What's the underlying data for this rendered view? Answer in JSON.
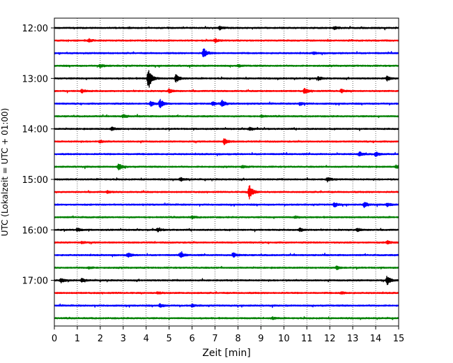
{
  "chart_data": {
    "type": "line",
    "title": "",
    "xlabel": "Zeit  [min]",
    "ylabel": "UTC (Lokalzeit = UTC + 01:00)",
    "xlim": [
      0,
      15
    ],
    "x_ticks": [
      "0",
      "1",
      "2",
      "3",
      "4",
      "5",
      "6",
      "7",
      "8",
      "9",
      "10",
      "11",
      "12",
      "13",
      "14",
      "15"
    ],
    "y_ticks": [
      "12:00",
      "13:00",
      "14:00",
      "15:00",
      "16:00",
      "17:00"
    ],
    "grid": "vertical dotted lines at every minute",
    "trace_interval_minutes": 15,
    "trace_colors": [
      "#000000",
      "#ff0000",
      "#0000ff",
      "#008000"
    ],
    "traces": [
      {
        "start": "12:00",
        "color": "#000000",
        "events": [
          [
            7.2,
            0.3
          ],
          [
            12.2,
            0.25
          ]
        ]
      },
      {
        "start": "12:15",
        "color": "#ff0000",
        "events": [
          [
            1.5,
            0.3
          ],
          [
            7.0,
            0.3
          ]
        ]
      },
      {
        "start": "12:30",
        "color": "#0000ff",
        "events": [
          [
            6.5,
            1.0
          ],
          [
            11.3,
            0.2
          ]
        ]
      },
      {
        "start": "12:45",
        "color": "#008000",
        "events": [
          [
            2.0,
            0.3
          ],
          [
            8.0,
            0.2
          ]
        ]
      },
      {
        "start": "13:00",
        "color": "#000000",
        "events": [
          [
            4.1,
            2.0
          ],
          [
            5.3,
            0.8
          ],
          [
            11.5,
            0.3
          ],
          [
            14.5,
            0.4
          ]
        ]
      },
      {
        "start": "13:15",
        "color": "#ff0000",
        "events": [
          [
            1.2,
            0.3
          ],
          [
            5.0,
            0.4
          ],
          [
            10.9,
            0.5
          ],
          [
            12.5,
            0.3
          ]
        ]
      },
      {
        "start": "13:30",
        "color": "#0000ff",
        "events": [
          [
            4.2,
            0.5
          ],
          [
            4.6,
            0.8
          ],
          [
            6.9,
            0.4
          ],
          [
            7.3,
            0.7
          ],
          [
            10.7,
            0.3
          ]
        ]
      },
      {
        "start": "13:45",
        "color": "#008000",
        "events": [
          [
            3.0,
            0.3
          ],
          [
            9.0,
            0.2
          ]
        ]
      },
      {
        "start": "14:00",
        "color": "#000000",
        "events": [
          [
            2.5,
            0.3
          ],
          [
            8.5,
            0.3
          ]
        ]
      },
      {
        "start": "14:15",
        "color": "#ff0000",
        "events": [
          [
            7.4,
            0.6
          ],
          [
            2.0,
            0.2
          ]
        ]
      },
      {
        "start": "14:30",
        "color": "#0000ff",
        "events": [
          [
            13.3,
            0.4
          ],
          [
            14.0,
            0.4
          ]
        ]
      },
      {
        "start": "14:45",
        "color": "#008000",
        "events": [
          [
            2.8,
            0.6
          ],
          [
            8.2,
            0.2
          ],
          [
            14.9,
            0.3
          ]
        ]
      },
      {
        "start": "15:00",
        "color": "#000000",
        "events": [
          [
            5.5,
            0.3
          ],
          [
            11.9,
            0.4
          ]
        ]
      },
      {
        "start": "15:15",
        "color": "#ff0000",
        "events": [
          [
            8.5,
            1.4
          ],
          [
            2.3,
            0.2
          ]
        ]
      },
      {
        "start": "15:30",
        "color": "#0000ff",
        "events": [
          [
            12.2,
            0.4
          ],
          [
            13.5,
            0.5
          ],
          [
            14.5,
            0.3
          ]
        ]
      },
      {
        "start": "15:45",
        "color": "#008000",
        "events": [
          [
            6.0,
            0.2
          ],
          [
            10.5,
            0.2
          ]
        ]
      },
      {
        "start": "16:00",
        "color": "#000000",
        "events": [
          [
            1.0,
            0.3
          ],
          [
            4.5,
            0.3
          ],
          [
            10.7,
            0.3
          ],
          [
            13.2,
            0.3
          ]
        ]
      },
      {
        "start": "16:15",
        "color": "#ff0000",
        "events": [
          [
            1.2,
            0.2
          ],
          [
            14.5,
            0.3
          ]
        ]
      },
      {
        "start": "16:30",
        "color": "#0000ff",
        "events": [
          [
            3.2,
            0.4
          ],
          [
            5.5,
            0.5
          ],
          [
            7.8,
            0.4
          ]
        ]
      },
      {
        "start": "16:45",
        "color": "#008000",
        "events": [
          [
            1.5,
            0.2
          ],
          [
            12.3,
            0.3
          ]
        ]
      },
      {
        "start": "17:00",
        "color": "#000000",
        "events": [
          [
            0.3,
            0.4
          ],
          [
            1.2,
            0.3
          ],
          [
            14.5,
            0.8
          ]
        ]
      },
      {
        "start": "17:15",
        "color": "#ff0000",
        "events": [
          [
            4.5,
            0.2
          ],
          [
            12.5,
            0.2
          ]
        ]
      },
      {
        "start": "17:30",
        "color": "#0000ff",
        "events": [
          [
            4.6,
            0.3
          ],
          [
            6.0,
            0.2
          ]
        ]
      },
      {
        "start": "17:45",
        "color": "#008000",
        "events": [
          [
            9.5,
            0.2
          ]
        ]
      }
    ]
  }
}
